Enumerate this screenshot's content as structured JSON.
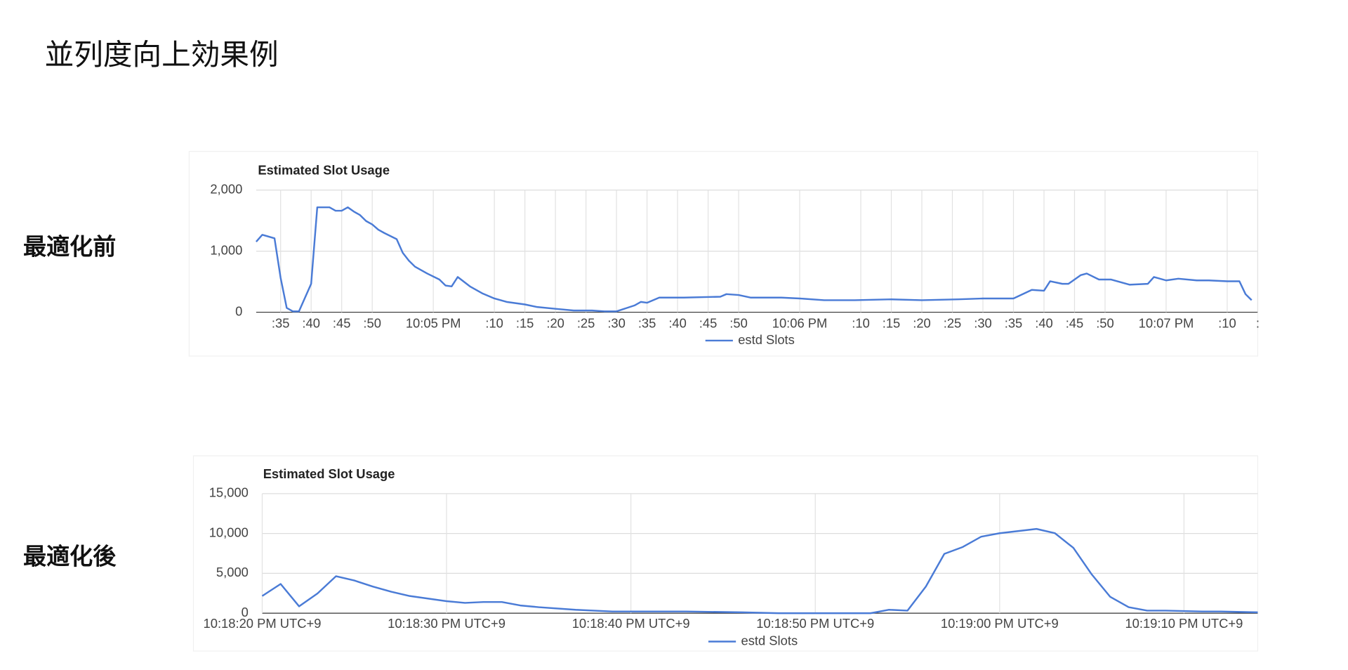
{
  "slide": {
    "title": "並列度向上効果例",
    "row_labels": [
      "最適化前",
      "最適化後"
    ]
  },
  "chart_data": [
    {
      "type": "line",
      "title": "Estimated Slot Usage",
      "x": [
        "22:04:31",
        "22:04:32",
        "22:04:34",
        "22:04:35",
        "22:04:36",
        "22:04:37",
        "22:04:38",
        "22:04:40",
        "22:04:41",
        "22:04:43",
        "22:04:44",
        "22:04:45",
        "22:04:46",
        "22:04:47",
        "22:04:48",
        "22:04:49",
        "22:04:50",
        "22:04:51",
        "22:04:52",
        "22:04:54",
        "22:04:55",
        "22:04:56",
        "22:04:57",
        "22:04:59",
        "22:05:01",
        "22:05:02",
        "22:05:03",
        "22:05:04",
        "22:05:06",
        "22:05:08",
        "22:05:10",
        "22:05:12",
        "22:05:15",
        "22:05:17",
        "22:05:20",
        "22:05:23",
        "22:05:26",
        "22:05:28",
        "22:05:30",
        "22:05:33",
        "22:05:34",
        "22:05:35",
        "22:05:37",
        "22:05:41",
        "22:05:47",
        "22:05:48",
        "22:05:50",
        "22:05:52",
        "22:05:57",
        "22:06:00",
        "22:06:04",
        "22:06:09",
        "22:06:15",
        "22:06:20",
        "22:06:26",
        "22:06:30",
        "22:06:35",
        "22:06:38",
        "22:06:40",
        "22:06:41",
        "22:06:43",
        "22:06:44",
        "22:06:46",
        "22:06:47",
        "22:06:49",
        "22:06:51",
        "22:06:54",
        "22:06:57",
        "22:06:58",
        "22:07:00",
        "22:07:02",
        "22:07:05",
        "22:07:07",
        "22:07:10",
        "22:07:12",
        "22:07:13",
        "22:07:14"
      ],
      "series": [
        {
          "name": "estd Slots",
          "color": "#4a7bd6",
          "values": [
            1155,
            1268,
            1211,
            563,
            70,
            14,
            14,
            465,
            1718,
            1718,
            1662,
            1662,
            1718,
            1648,
            1591,
            1493,
            1437,
            1352,
            1296,
            1197,
            972,
            845,
            746,
            634,
            535,
            437,
            423,
            577,
            423,
            310,
            225,
            169,
            127,
            85,
            56,
            28,
            28,
            14,
            14,
            113,
            169,
            155,
            239,
            239,
            254,
            296,
            282,
            239,
            239,
            225,
            197,
            197,
            211,
            197,
            211,
            225,
            225,
            366,
            352,
            507,
            465,
            465,
            606,
            634,
            535,
            535,
            451,
            465,
            577,
            521,
            549,
            521,
            521,
            507,
            507,
            296,
            197
          ]
        }
      ],
      "xlim": [
        "22:04:31",
        "22:07:15"
      ],
      "xticks": [
        {
          "value": "22:04:35",
          "label": ":35"
        },
        {
          "value": "22:04:40",
          "label": ":40"
        },
        {
          "value": "22:04:45",
          "label": ":45"
        },
        {
          "value": "22:04:50",
          "label": ":50"
        },
        {
          "value": "22:05:00",
          "label": "10:05 PM"
        },
        {
          "value": "22:05:10",
          "label": ":10"
        },
        {
          "value": "22:05:15",
          "label": ":15"
        },
        {
          "value": "22:05:20",
          "label": ":20"
        },
        {
          "value": "22:05:25",
          "label": ":25"
        },
        {
          "value": "22:05:30",
          "label": ":30"
        },
        {
          "value": "22:05:35",
          "label": ":35"
        },
        {
          "value": "22:05:40",
          "label": ":40"
        },
        {
          "value": "22:05:45",
          "label": ":45"
        },
        {
          "value": "22:05:50",
          "label": ":50"
        },
        {
          "value": "22:06:00",
          "label": "10:06 PM"
        },
        {
          "value": "22:06:10",
          "label": ":10"
        },
        {
          "value": "22:06:15",
          "label": ":15"
        },
        {
          "value": "22:06:20",
          "label": ":20"
        },
        {
          "value": "22:06:25",
          "label": ":25"
        },
        {
          "value": "22:06:30",
          "label": ":30"
        },
        {
          "value": "22:06:35",
          "label": ":35"
        },
        {
          "value": "22:06:40",
          "label": ":40"
        },
        {
          "value": "22:06:45",
          "label": ":45"
        },
        {
          "value": "22:06:50",
          "label": ":50"
        },
        {
          "value": "22:07:00",
          "label": "10:07 PM"
        },
        {
          "value": "22:07:10",
          "label": ":10"
        },
        {
          "value": "22:07:15",
          "label": ":"
        }
      ],
      "ylim": [
        0,
        2000
      ],
      "yticks": [
        0,
        {
          "value": 1000,
          "label": "1,000"
        },
        {
          "value": 2000,
          "label": "2,000"
        }
      ],
      "grid": true,
      "legend": "bottom"
    },
    {
      "type": "line",
      "title": "Estimated Slot Usage",
      "x": [
        "22:18:20",
        "22:18:21",
        "22:18:22",
        "22:18:23",
        "22:18:24",
        "22:18:25",
        "22:18:26",
        "22:18:27",
        "22:18:28",
        "22:18:30",
        "22:18:31",
        "22:18:32",
        "22:18:33",
        "22:18:34",
        "22:18:35",
        "22:18:37",
        "22:18:39",
        "22:18:40",
        "22:18:43",
        "22:18:46",
        "22:18:48",
        "22:18:53",
        "22:18:54",
        "22:18:55",
        "22:18:56",
        "22:18:57",
        "22:18:58",
        "22:18:59",
        "22:19:00",
        "22:19:02",
        "22:19:03",
        "22:19:04",
        "22:19:05",
        "22:19:06",
        "22:19:07",
        "22:19:08",
        "22:19:09",
        "22:19:11",
        "22:19:12",
        "22:19:14"
      ],
      "series": [
        {
          "name": "estd Slots",
          "color": "#4a7bd6",
          "values": [
            2158,
            3669,
            863,
            2482,
            4640,
            4101,
            3345,
            2698,
            2158,
            1511,
            1295,
            1403,
            1403,
            971,
            755,
            432,
            216,
            216,
            216,
            108,
            0,
            0,
            432,
            324,
            3345,
            7446,
            8309,
            9604,
            10036,
            10576,
            10036,
            8201,
            4856,
            2050,
            755,
            324,
            324,
            216,
            216,
            108
          ]
        }
      ],
      "xlim": [
        "22:18:20",
        "22:19:14"
      ],
      "xticks": [
        {
          "value": "22:18:20",
          "label": "10:18:20 PM UTC+9"
        },
        {
          "value": "22:18:30",
          "label": "10:18:30 PM UTC+9"
        },
        {
          "value": "22:18:40",
          "label": "10:18:40 PM UTC+9"
        },
        {
          "value": "22:18:50",
          "label": "10:18:50 PM UTC+9"
        },
        {
          "value": "22:19:00",
          "label": "10:19:00 PM UTC+9"
        },
        {
          "value": "22:19:10",
          "label": "10:19:10 PM UTC+9"
        }
      ],
      "ylim": [
        0,
        15000
      ],
      "yticks": [
        0,
        {
          "value": 5000,
          "label": "5,000"
        },
        {
          "value": 10000,
          "label": "10,000"
        },
        {
          "value": 15000,
          "label": "15,000"
        }
      ],
      "grid": true,
      "legend": "bottom"
    }
  ]
}
